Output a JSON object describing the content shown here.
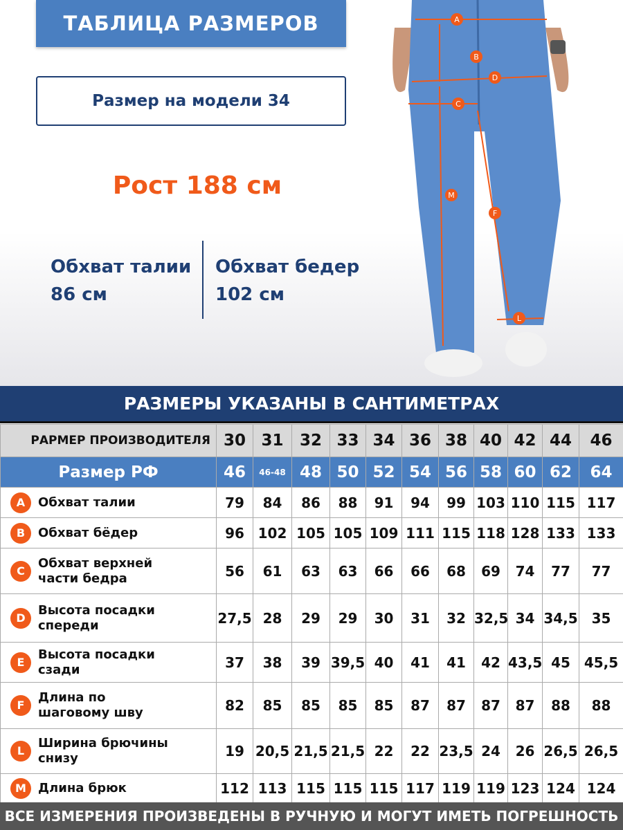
{
  "header": {
    "title": "ТАБЛИЦА РАЗМЕРОВ",
    "model_size": "Размер на модели 34",
    "height": "Рост 188 см",
    "waist_label": "Обхват талии",
    "waist_value": "86 см",
    "hips_label": "Обхват бедер",
    "hips_value": "102 см"
  },
  "photo": {
    "markers": [
      "A",
      "B",
      "C",
      "D",
      "M",
      "F",
      "L"
    ]
  },
  "banner": "РАЗМЕРЫ УКАЗАНЫ В САНТИМЕТРАХ",
  "table": {
    "maker_label": "РАРМЕР ПРОИЗВОДИТЕЛЯ",
    "maker_sizes": [
      "30",
      "31",
      "32",
      "33",
      "34",
      "36",
      "38",
      "40",
      "42",
      "44",
      "46"
    ],
    "rf_label": "Размер РФ",
    "rf_sizes": [
      "46",
      "46-48",
      "48",
      "50",
      "52",
      "54",
      "56",
      "58",
      "60",
      "62",
      "64"
    ],
    "rows": [
      {
        "letter": "A",
        "label": "Обхват талии",
        "values": [
          "79",
          "84",
          "86",
          "88",
          "91",
          "94",
          "99",
          "103",
          "110",
          "115",
          "117"
        ]
      },
      {
        "letter": "B",
        "label": "Обхват бёдер",
        "values": [
          "96",
          "102",
          "105",
          "105",
          "109",
          "111",
          "115",
          "118",
          "128",
          "133",
          "133"
        ]
      },
      {
        "letter": "C",
        "label": "Обхват верхней части бедра",
        "values": [
          "56",
          "61",
          "63",
          "63",
          "66",
          "66",
          "68",
          "69",
          "74",
          "77",
          "77"
        ]
      },
      {
        "letter": "D",
        "label": "Высота посадки спереди",
        "values": [
          "27,5",
          "28",
          "29",
          "29",
          "30",
          "31",
          "32",
          "32,5",
          "34",
          "34,5",
          "35"
        ]
      },
      {
        "letter": "E",
        "label": "Высота посадки сзади",
        "values": [
          "37",
          "38",
          "39",
          "39,5",
          "40",
          "41",
          "41",
          "42",
          "43,5",
          "45",
          "45,5"
        ]
      },
      {
        "letter": "F",
        "label": "Длина по шаговому шву",
        "values": [
          "82",
          "85",
          "85",
          "85",
          "85",
          "87",
          "87",
          "87",
          "87",
          "88",
          "88"
        ]
      },
      {
        "letter": "L",
        "label": "Ширина брючины снизу",
        "values": [
          "19",
          "20,5",
          "21,5",
          "21,5",
          "22",
          "22",
          "23,5",
          "24",
          "26",
          "26,5",
          "26,5"
        ]
      },
      {
        "letter": "M",
        "label": "Длина брюк",
        "values": [
          "112",
          "113",
          "115",
          "115",
          "115",
          "117",
          "119",
          "119",
          "123",
          "124",
          "124"
        ]
      }
    ]
  },
  "footer": "ВСЕ ИЗМЕРЕНИЯ ПРОИЗВЕДЕНЫ В РУЧНУЮ И МОГУТ ИМЕТЬ ПОГРЕШНОСТЬ",
  "colors": {
    "accent": "#f05a1a",
    "navy": "#1f3f73",
    "blue": "#4a7fc1"
  }
}
